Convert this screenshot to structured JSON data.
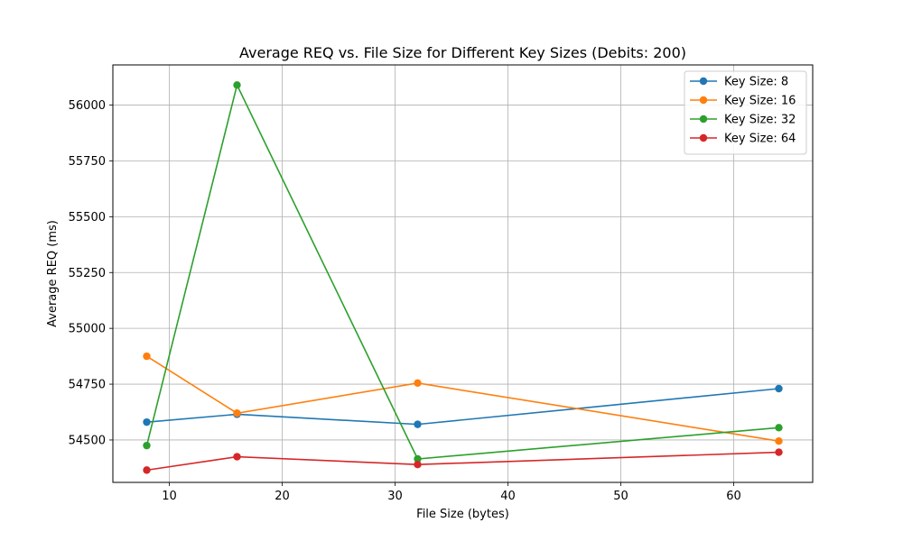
{
  "chart_data": {
    "type": "line",
    "title": "Average REQ vs. File Size for Different Key Sizes (Debits: 200)",
    "xlabel": "File Size (bytes)",
    "ylabel": "Average REQ (ms)",
    "x": [
      8,
      16,
      32,
      64
    ],
    "xlim": [
      5,
      67
    ],
    "ylim": [
      54310,
      56180
    ],
    "xticks": [
      10,
      20,
      30,
      40,
      50,
      60
    ],
    "yticks": [
      54500,
      54750,
      55000,
      55250,
      55500,
      55750,
      56000
    ],
    "grid": true,
    "legend_position": "top-right",
    "series": [
      {
        "name": "Key Size: 8",
        "color": "#1f77b4",
        "values": [
          54580,
          54615,
          54570,
          54730
        ]
      },
      {
        "name": "Key Size: 16",
        "color": "#ff7f0e",
        "values": [
          54875,
          54620,
          54755,
          54495
        ]
      },
      {
        "name": "Key Size: 32",
        "color": "#2ca02c",
        "values": [
          54475,
          56090,
          54415,
          54555
        ]
      },
      {
        "name": "Key Size: 64",
        "color": "#d62728",
        "values": [
          54365,
          54425,
          54390,
          54445
        ]
      }
    ]
  }
}
